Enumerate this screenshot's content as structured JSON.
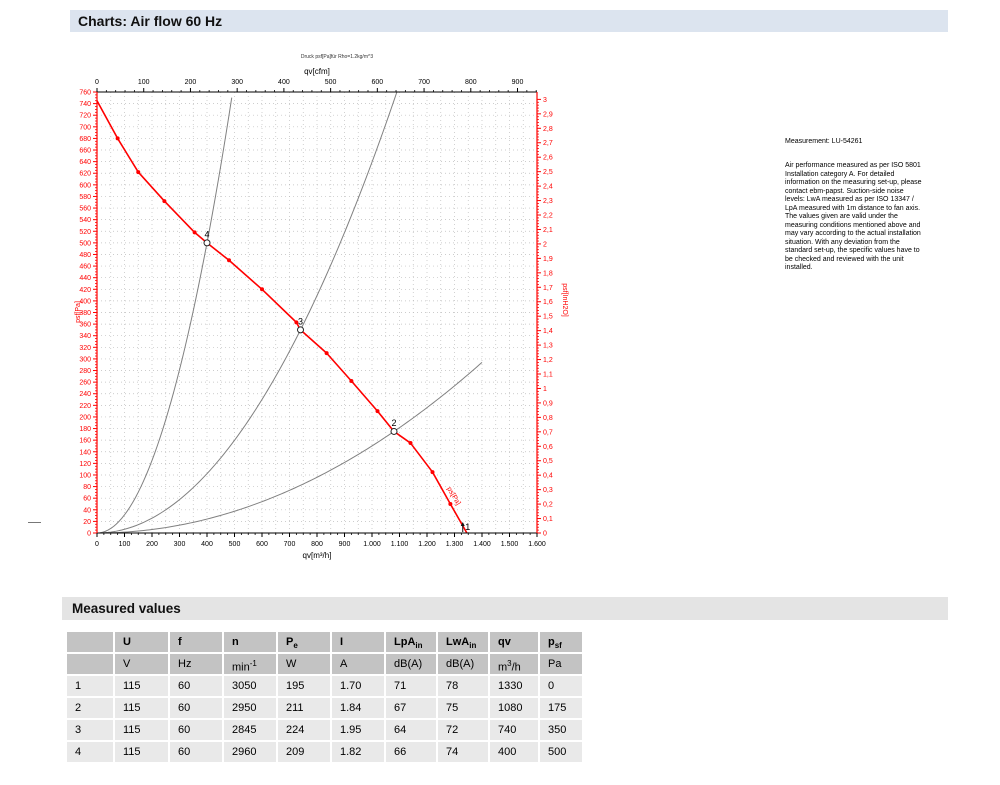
{
  "header": {
    "title": "Charts: Air flow 60 Hz"
  },
  "measurement": {
    "label": "Measurement: LU-54261",
    "note": "Air performance measured as per ISO 5801\nInstallation category A. For detailed\ninformation on the measuring set-up, please\ncontact ebm-papst. Suction-side noise\nlevels: LwA measured as per ISO 13347 /\nLpA measured with 1m distance to fan axis.\nThe values given are valid under the\nmeasuring conditions mentioned above and\nmay vary according to the actual installation\nsituation. With any deviation from the\nstandard set-up, the specific values have to\nbe checked and reviewed with the unit\ninstalled."
  },
  "chart_data": {
    "type": "line",
    "title_small": "Druck psf[Pa]für Rho=1.2kg/m^3",
    "curve_label": "ps[Pa]",
    "colors": {
      "curve": "#ff0000",
      "system_curves": "#808080",
      "axis_red": "#ff0000",
      "axis_black": "#000000",
      "grid": "#b5b5b5"
    },
    "axes": {
      "bottom": {
        "label": "qv[m³/h]",
        "min": 0,
        "max": 1600,
        "tick_step": 100,
        "minor_step": 25,
        "tick_labels": [
          "0",
          "100",
          "200",
          "300",
          "400",
          "500",
          "600",
          "700",
          "800",
          "900",
          "1.000",
          "1.100",
          "1.200",
          "1.300",
          "1.400",
          "1.500",
          "1.600"
        ]
      },
      "top": {
        "label": "qv[cfm]",
        "min": 0,
        "max": 900,
        "tick_step": 100,
        "minor_step": 20,
        "tick_labels": [
          "0",
          "100",
          "200",
          "300",
          "400",
          "500",
          "600",
          "700",
          "800",
          "900"
        ]
      },
      "left": {
        "label": "psf[Pa]",
        "min": 0,
        "max": 760,
        "tick_step": 20,
        "minor_step": 5,
        "tick_labels": [
          "0",
          "20",
          "40",
          "60",
          "80",
          "100",
          "120",
          "140",
          "160",
          "180",
          "200",
          "220",
          "240",
          "260",
          "280",
          "300",
          "320",
          "340",
          "360",
          "380",
          "400",
          "420",
          "440",
          "460",
          "480",
          "500",
          "520",
          "540",
          "560",
          "580",
          "600",
          "620",
          "640",
          "660",
          "680",
          "700",
          "720",
          "740",
          "760"
        ]
      },
      "right": {
        "label": "psf[InH2O]",
        "min": 0,
        "max": 3,
        "tick_step": 0.1,
        "minor_step": 0.02,
        "tick_labels": [
          "0",
          "0,1",
          "0,2",
          "0,3",
          "0,4",
          "0,5",
          "0,6",
          "0,7",
          "0,8",
          "0,9",
          "1",
          "1,1",
          "1,2",
          "1,3",
          "1,4",
          "1,5",
          "1,6",
          "1,7",
          "1,8",
          "1,9",
          "2",
          "2,1",
          "2,2",
          "2,3",
          "2,4",
          "2,5",
          "2,6",
          "2,7",
          "2,8",
          "2,9",
          "3"
        ]
      }
    },
    "fan_curve": {
      "points": [
        [
          0,
          745
        ],
        [
          75,
          680
        ],
        [
          150,
          622
        ],
        [
          245,
          572
        ],
        [
          355,
          518
        ],
        [
          400,
          500
        ],
        [
          480,
          470
        ],
        [
          600,
          420
        ],
        [
          725,
          363
        ],
        [
          740,
          350
        ],
        [
          835,
          310
        ],
        [
          925,
          262
        ],
        [
          1020,
          210
        ],
        [
          1080,
          175
        ],
        [
          1140,
          155
        ],
        [
          1220,
          105
        ],
        [
          1285,
          50
        ],
        [
          1345,
          0
        ]
      ],
      "marker_points": [
        [
          75,
          680
        ],
        [
          150,
          622
        ],
        [
          245,
          572
        ],
        [
          355,
          518
        ],
        [
          480,
          470
        ],
        [
          600,
          420
        ],
        [
          725,
          363
        ],
        [
          835,
          310
        ],
        [
          925,
          262
        ],
        [
          1020,
          210
        ],
        [
          1140,
          155
        ],
        [
          1220,
          105
        ],
        [
          1285,
          50
        ]
      ]
    },
    "operating_points": [
      {
        "n": "1",
        "qv": 1330,
        "psf": 0
      },
      {
        "n": "2",
        "qv": 1080,
        "psf": 175
      },
      {
        "n": "3",
        "qv": 740,
        "psf": 350
      },
      {
        "n": "4",
        "qv": 400,
        "psf": 500
      }
    ],
    "system_curves": [
      {
        "qv": 400,
        "psf": 500,
        "q_end": 494
      },
      {
        "qv": 740,
        "psf": 350,
        "q_end": 1090
      },
      {
        "qv": 1080,
        "psf": 175,
        "q_end": 1400
      }
    ]
  },
  "section": {
    "title": "Measured values"
  },
  "table": {
    "columns": [
      {
        "label": ""
      },
      {
        "label": "U"
      },
      {
        "label": "f"
      },
      {
        "label": "n"
      },
      {
        "label": "P",
        "sub": "e"
      },
      {
        "label": "I"
      },
      {
        "label": "LpA",
        "sub": "in"
      },
      {
        "label": "LwA",
        "sub": "in"
      },
      {
        "label": "qv"
      },
      {
        "label": "p",
        "sub": "sf"
      }
    ],
    "units": [
      {
        "t": ""
      },
      {
        "t": "V"
      },
      {
        "t": "Hz"
      },
      {
        "t": "min",
        "sup": "-1"
      },
      {
        "t": "W"
      },
      {
        "t": "A"
      },
      {
        "t": "dB(A)"
      },
      {
        "t": "dB(A)"
      },
      {
        "t": "m",
        "sup": "3",
        "tail": "/h"
      },
      {
        "t": "Pa"
      }
    ],
    "rows": [
      [
        "1",
        "115",
        "60",
        "3050",
        "195",
        "1.70",
        "71",
        "78",
        "1330",
        "0"
      ],
      [
        "2",
        "115",
        "60",
        "2950",
        "211",
        "1.84",
        "67",
        "75",
        "1080",
        "175"
      ],
      [
        "3",
        "115",
        "60",
        "2845",
        "224",
        "1.95",
        "64",
        "72",
        "740",
        "350"
      ],
      [
        "4",
        "115",
        "60",
        "2960",
        "209",
        "1.82",
        "66",
        "74",
        "400",
        "500"
      ]
    ]
  }
}
